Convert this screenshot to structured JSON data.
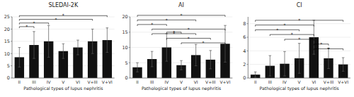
{
  "chart_data": [
    {
      "type": "bar",
      "title": "SLEDAI-2K",
      "xlabel": "Pathological types of lupus nephritis",
      "categories": [
        "II",
        "III",
        "IV",
        "V",
        "VI",
        "V+III",
        "V+VI"
      ],
      "values": [
        8.5,
        13.5,
        15.0,
        11.0,
        12.5,
        15.0,
        15.5
      ],
      "errors": [
        4.0,
        5.5,
        6.5,
        3.0,
        3.0,
        5.0,
        5.0
      ],
      "color": "#111111",
      "ylim": [
        0,
        25
      ],
      "yticks": [
        0,
        5,
        10,
        15,
        20,
        25
      ],
      "annotations": [
        {
          "from": "II",
          "to": "III",
          "y": 21.0,
          "label": "*"
        },
        {
          "from": "II",
          "to": "IV",
          "y": 22.5,
          "label": "*"
        },
        {
          "from": "II",
          "to": "V+III",
          "y": 24.0,
          "label": "*"
        },
        {
          "from": "II",
          "to": "V+VI",
          "y": 25.5,
          "label": "*"
        }
      ]
    },
    {
      "type": "bar",
      "title": "AI",
      "xlabel": "Pathological types of lupus nephritis",
      "categories": [
        "II",
        "III",
        "IV",
        "V",
        "VI",
        "V+III",
        "V+VI"
      ],
      "values": [
        3.5,
        6.2,
        10.0,
        4.2,
        7.5,
        6.0,
        11.2
      ],
      "errors": [
        1.5,
        2.5,
        4.5,
        1.5,
        3.5,
        3.0,
        6.0
      ],
      "color": "#111111",
      "ylim": [
        0,
        20
      ],
      "yticks": [
        0,
        5,
        10,
        15,
        20
      ],
      "annotations": [
        {
          "from": "II",
          "to": "V+VI",
          "y": 20.5,
          "label": "*"
        },
        {
          "from": "II",
          "to": "VI",
          "y": 19.0,
          "label": "*"
        },
        {
          "from": "II",
          "to": "IV",
          "y": 17.5,
          "label": "*"
        },
        {
          "from": "III",
          "to": "V+VI",
          "y": 16.0,
          "label": "*"
        },
        {
          "from": "III",
          "to": "VI",
          "y": 14.5,
          "label": "*"
        },
        {
          "from": "IV",
          "to": "V",
          "y": 15.0,
          "label": "*"
        },
        {
          "from": "IV",
          "to": "V+III",
          "y": 13.0,
          "label": "*"
        },
        {
          "from": "V",
          "to": "V+VI",
          "y": 11.5,
          "label": "*"
        }
      ]
    },
    {
      "type": "bar",
      "title": "CI",
      "xlabel": "Pathological types of lupus nephritis",
      "categories": [
        "II",
        "III",
        "IV",
        "V",
        "VI",
        "V+III",
        "V+VI"
      ],
      "values": [
        0.5,
        1.8,
        2.1,
        2.9,
        6.0,
        2.9,
        2.0
      ],
      "errors": [
        0.4,
        1.5,
        1.8,
        2.2,
        2.5,
        1.5,
        1.0
      ],
      "color": "#111111",
      "ylim": [
        0,
        9
      ],
      "yticks": [
        0,
        2,
        4,
        6,
        8
      ],
      "annotations": [
        {
          "from": "II",
          "to": "V+VI",
          "y": 8.5,
          "label": "*"
        },
        {
          "from": "II",
          "to": "VI",
          "y": 7.8,
          "label": "*"
        },
        {
          "from": "II",
          "to": "V",
          "y": 7.1,
          "label": "*"
        },
        {
          "from": "III",
          "to": "VI",
          "y": 6.4,
          "label": "*"
        },
        {
          "from": "IV",
          "to": "VI",
          "y": 5.7,
          "label": "*"
        },
        {
          "from": "VI",
          "to": "V+III",
          "y": 5.0,
          "label": "*"
        },
        {
          "from": "VI",
          "to": "V+VI",
          "y": 4.3,
          "label": "*"
        }
      ]
    }
  ]
}
